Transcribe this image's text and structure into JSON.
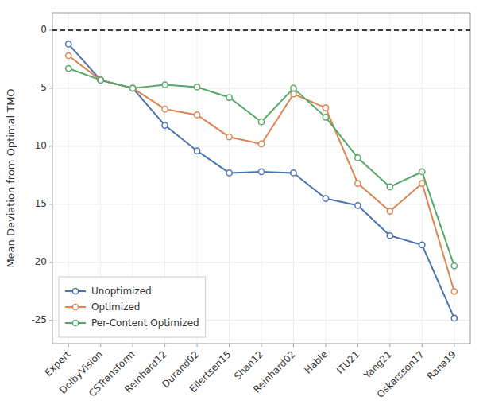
{
  "chart_data": {
    "type": "line",
    "categories": [
      "Expert",
      "DolbyVision",
      "CSTransform",
      "Reinhard12",
      "Durand02",
      "Eilertsen15",
      "Shan12",
      "Reinhard02",
      "Hable",
      "ITU21",
      "Yang21",
      "Oskarsson17",
      "Rana19"
    ],
    "series": [
      {
        "name": "Unoptimized",
        "color": "#4c72b0",
        "marker": "circle",
        "values": [
          -1.2,
          -4.3,
          -5.0,
          -8.2,
          -10.4,
          -12.3,
          -12.2,
          -12.3,
          -14.5,
          -15.1,
          -17.7,
          -18.5,
          -24.8
        ]
      },
      {
        "name": "Optimized",
        "color": "#dd8452",
        "marker": "circle",
        "values": [
          -2.2,
          -4.3,
          -5.0,
          -6.8,
          -7.3,
          -9.2,
          -9.8,
          -5.5,
          -6.7,
          -13.2,
          -15.6,
          -13.2,
          -22.5
        ]
      },
      {
        "name": "Per-Content Optimized",
        "color": "#55a868",
        "marker": "circle",
        "values": [
          -3.3,
          -4.3,
          -5.0,
          -4.7,
          -4.9,
          -5.8,
          -7.9,
          -5.0,
          -7.5,
          -11.0,
          -13.5,
          -12.2,
          -20.3
        ]
      }
    ],
    "ylabel": "Mean Deviation from Optimal TMO",
    "ylim": [
      -27,
      1.5
    ],
    "yticks": [
      0,
      -5,
      -10,
      -15,
      -20,
      -25
    ],
    "reference_line": 0,
    "grid": true,
    "legend": "lower left"
  }
}
